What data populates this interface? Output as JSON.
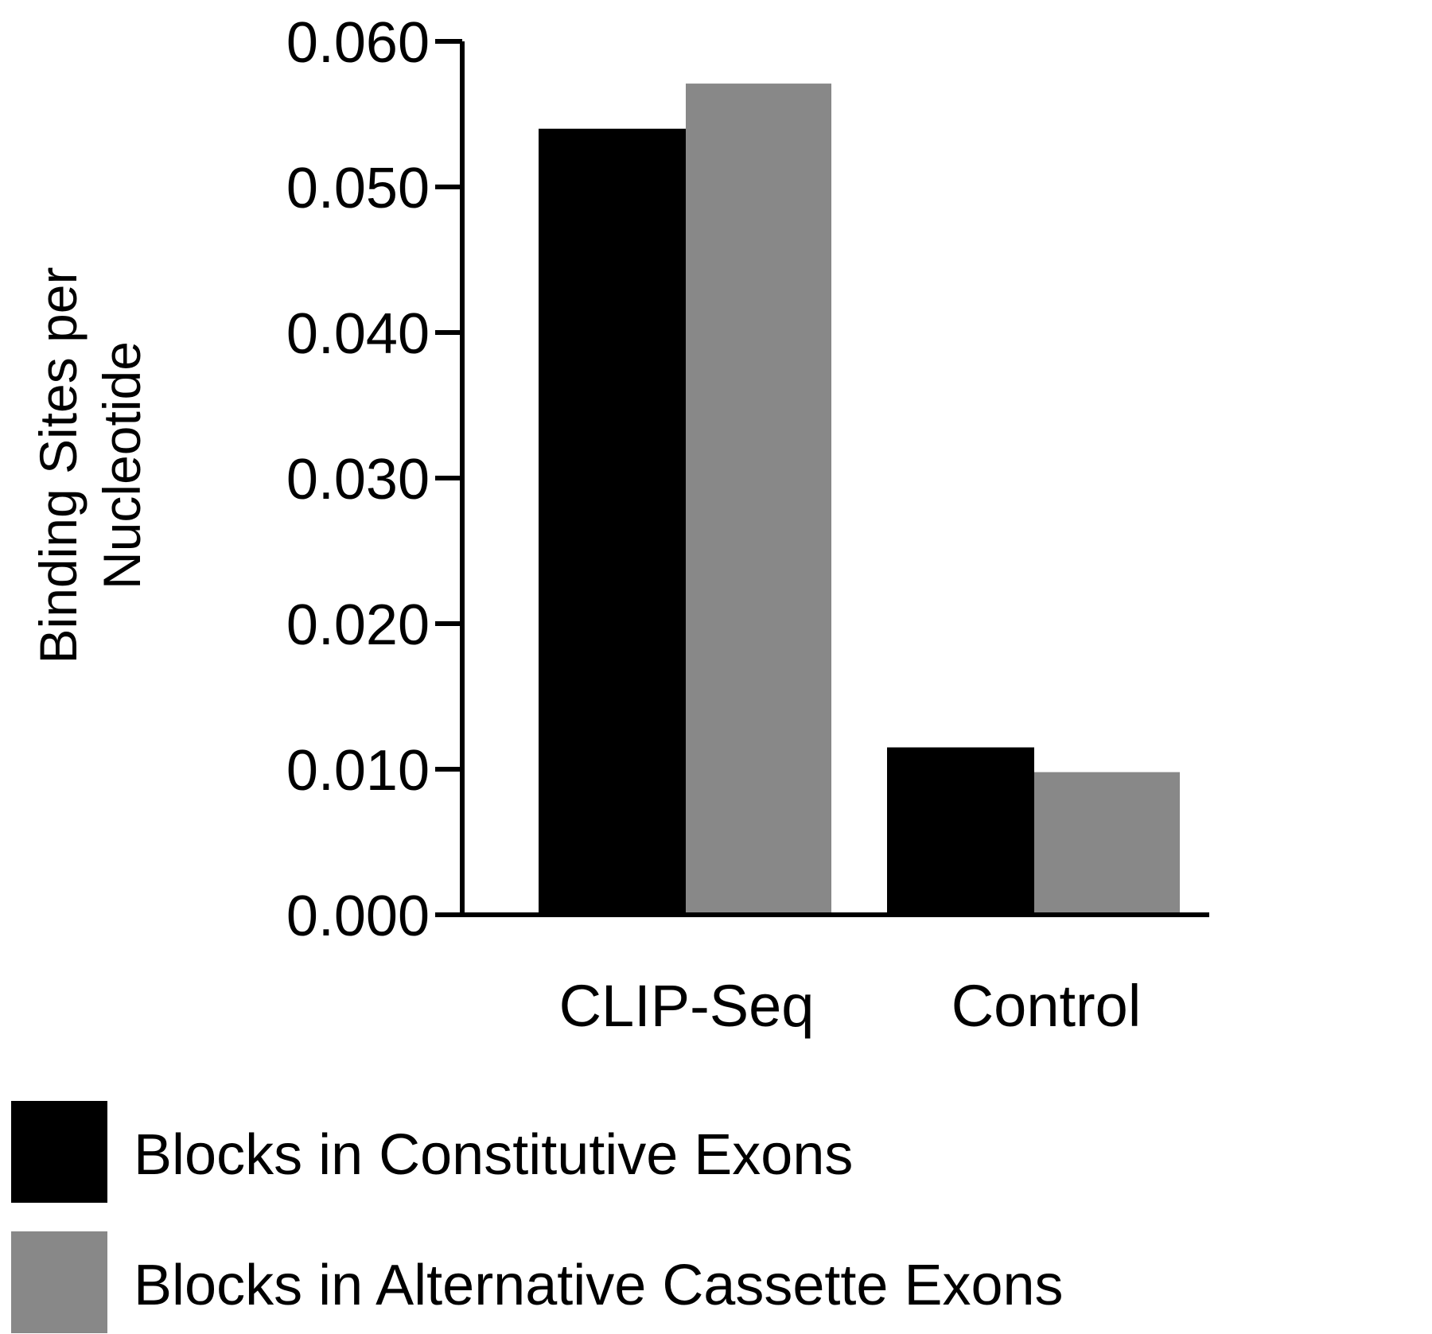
{
  "chart_data": {
    "type": "bar",
    "title": "",
    "xlabel": "",
    "ylabel": "Binding Sites per Nucleotide",
    "ylabel_lines": [
      "Binding Sites per",
      "Nucleotide"
    ],
    "categories": [
      "CLIP-Seq",
      "Control"
    ],
    "series": [
      {
        "name": "Blocks in Constitutive Exons",
        "color": "#000000",
        "values": [
          0.054,
          0.0115
        ]
      },
      {
        "name": "Blocks in Alternative Cassette Exons",
        "color": "#888888",
        "values": [
          0.0571,
          0.0098
        ]
      }
    ],
    "ylim": [
      0.0,
      0.06
    ],
    "yticks": [
      0.0,
      0.01,
      0.02,
      0.03,
      0.04,
      0.05,
      0.06
    ],
    "ytick_labels": [
      "0.000",
      "0.010",
      "0.020",
      "0.030",
      "0.040",
      "0.050",
      "0.060"
    ],
    "grid": false,
    "legend_position": "bottom-left"
  }
}
